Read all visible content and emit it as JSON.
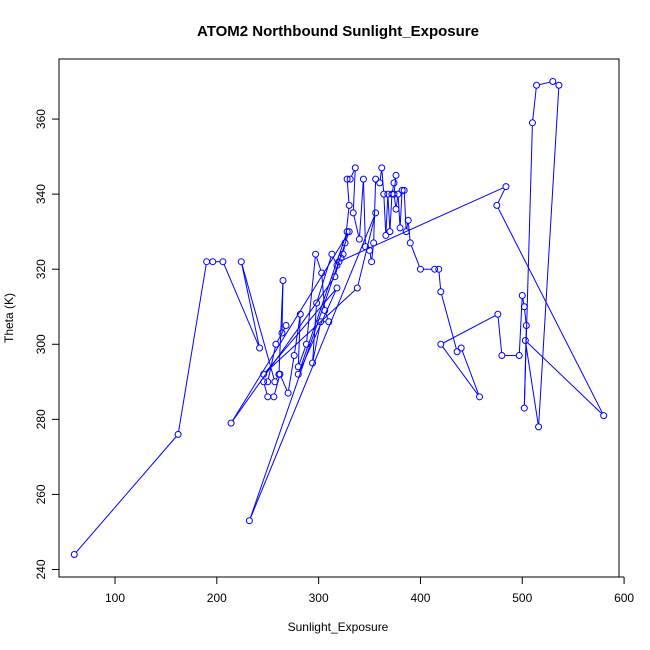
{
  "chart_data": {
    "type": "line",
    "title": "ATOM2 Northbound Sunlight_Exposure",
    "xlabel": "Sunlight_Exposure",
    "ylabel": "Theta (K)",
    "xlim": [
      45,
      595
    ],
    "ylim": [
      238,
      376
    ],
    "xticks": [
      100,
      200,
      300,
      400,
      500,
      600
    ],
    "yticks": [
      240,
      260,
      280,
      300,
      320,
      340,
      360
    ],
    "color": "#0000ff",
    "marker": "open-circle",
    "grid": false,
    "series": [
      {
        "points": [
          [
            60,
            244
          ],
          [
            162,
            276
          ],
          [
            190,
            322
          ],
          [
            196,
            322
          ],
          [
            206,
            322
          ],
          [
            242,
            299
          ],
          [
            224,
            322
          ],
          [
            257,
            290
          ],
          [
            261,
            292
          ],
          [
            265,
            317
          ],
          [
            264,
            303
          ],
          [
            268,
            305
          ],
          [
            258,
            300
          ],
          [
            250,
            290
          ],
          [
            246,
            290
          ],
          [
            250,
            286
          ],
          [
            256,
            286
          ],
          [
            262,
            292
          ],
          [
            270,
            287
          ],
          [
            276,
            297
          ],
          [
            282,
            308
          ],
          [
            280,
            294
          ],
          [
            288,
            300
          ],
          [
            297,
            324
          ],
          [
            303,
            319
          ],
          [
            306,
            309
          ],
          [
            310,
            306
          ],
          [
            302,
            306
          ],
          [
            294,
            295
          ],
          [
            298,
            311
          ],
          [
            313,
            324
          ],
          [
            318,
            321
          ],
          [
            322,
            323
          ],
          [
            324,
            324
          ],
          [
            326,
            327
          ],
          [
            330,
            337
          ],
          [
            328,
            344
          ],
          [
            331,
            344
          ],
          [
            336,
            347
          ],
          [
            334,
            335
          ],
          [
            340,
            328
          ],
          [
            344,
            344
          ],
          [
            346,
            326
          ],
          [
            350,
            325
          ],
          [
            352,
            322
          ],
          [
            354,
            327
          ],
          [
            356,
            344
          ],
          [
            360,
            343
          ],
          [
            362,
            347
          ],
          [
            364,
            340
          ],
          [
            366,
            329
          ],
          [
            368,
            340
          ],
          [
            370,
            330
          ],
          [
            372,
            340
          ],
          [
            374,
            343
          ],
          [
            376,
            345
          ],
          [
            374,
            340
          ],
          [
            376,
            336
          ],
          [
            378,
            340
          ],
          [
            380,
            331
          ],
          [
            382,
            341
          ],
          [
            384,
            341
          ],
          [
            386,
            330
          ],
          [
            388,
            333
          ],
          [
            390,
            327
          ],
          [
            400,
            320
          ],
          [
            414,
            320
          ],
          [
            418,
            320
          ],
          [
            420,
            314
          ],
          [
            436,
            298
          ],
          [
            440,
            299
          ],
          [
            458,
            286
          ],
          [
            420,
            300
          ],
          [
            476,
            308
          ],
          [
            480,
            297
          ],
          [
            497,
            297
          ],
          [
            500,
            313
          ],
          [
            502,
            310
          ],
          [
            504,
            305
          ],
          [
            502,
            283
          ],
          [
            510,
            359
          ],
          [
            514,
            369
          ],
          [
            530,
            370
          ],
          [
            536,
            369
          ],
          [
            516,
            278
          ],
          [
            503,
            301
          ],
          [
            580,
            281
          ],
          [
            475,
            337
          ],
          [
            484,
            342
          ],
          [
            320,
            322
          ],
          [
            316,
            318
          ],
          [
            214,
            279
          ],
          [
            330,
            330
          ],
          [
            232,
            253
          ],
          [
            356,
            335
          ],
          [
            338,
            315
          ],
          [
            246,
            292
          ],
          [
            318,
            315
          ],
          [
            280,
            292
          ],
          [
            328,
            330
          ]
        ]
      }
    ]
  }
}
